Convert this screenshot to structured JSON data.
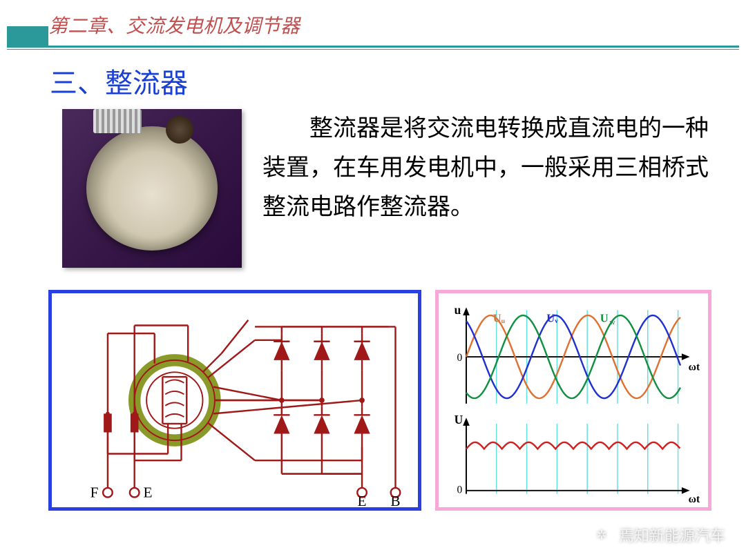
{
  "header": {
    "chapter_title": "第二章、交流发电机及调节器",
    "accent_color": "#2b9999",
    "title_color": "#c05050"
  },
  "section": {
    "title": "三、整流器",
    "title_color": "#1a3fd4",
    "title_fontsize": 40
  },
  "body": {
    "text": "整流器是将交流电转换成直流电的一种装置，在车用发电机中，一般采用三相桥式整流电路作整流器。",
    "fontsize": 34,
    "color": "#000000"
  },
  "circuit_diagram": {
    "type": "circuit-schematic",
    "border_color": "#2a3fe0",
    "wire_color": "#a01818",
    "ring_outer_color": "#8a9a2a",
    "ring_inner_color": "#a01818",
    "diode_count": 6,
    "terminals": [
      "F",
      "E",
      "E",
      "B"
    ],
    "terminal_fontsize": 22
  },
  "waveform_diagram": {
    "type": "line",
    "border_color": "#f8a8d8",
    "background_color": "#ffffff",
    "axis_color": "#000000",
    "grid_color": "#60e0e0",
    "upper": {
      "ylabel": "u",
      "xlabel": "ωt",
      "zero_label": "0",
      "series": [
        {
          "name": "Uu",
          "label": "Uᵤ",
          "color": "#e07030",
          "phase_deg": 0
        },
        {
          "name": "Uv",
          "label": "Uᵥ",
          "color": "#2030d0",
          "phase_deg": 120
        },
        {
          "name": "Uw",
          "label": "U_w",
          "label_display": "U",
          "sub": "w",
          "color": "#109040",
          "phase_deg": 240
        }
      ],
      "amplitude": 1.0,
      "cycles_shown": 2.2,
      "grid_verticals": 7
    },
    "lower": {
      "ylabel": "U",
      "xlabel": "ωt",
      "zero_label": "0",
      "series_color": "#d02020",
      "ripple_count": 12,
      "mean_level": 0.85
    }
  },
  "watermark": {
    "text": "焉知新能源汽车",
    "icon_glyph": "✲"
  }
}
